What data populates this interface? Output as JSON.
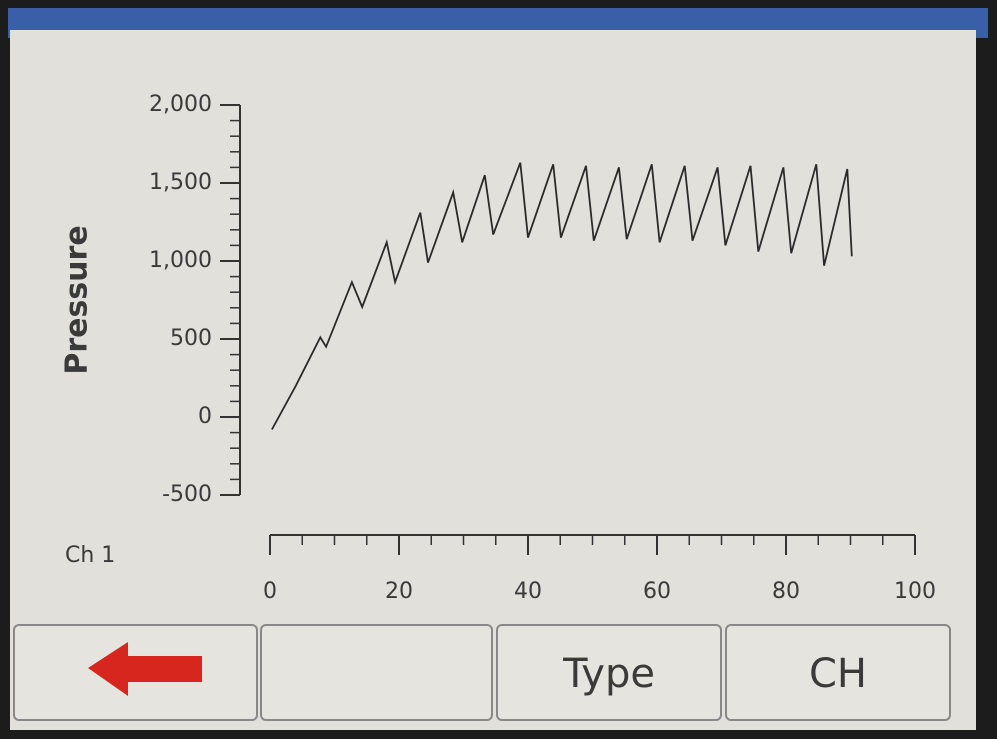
{
  "chart_data": {
    "type": "line",
    "ylabel": "Pressure",
    "channel_label": "Ch 1",
    "x": [
      0.3,
      4,
      7.8,
      8.7,
      12.7,
      14.3,
      18.1,
      19.4,
      23.3,
      24.5,
      28.4,
      29.8,
      33.3,
      34.6,
      38.8,
      40,
      43.9,
      45.1,
      49,
      50.2,
      54.1,
      55.3,
      59.2,
      60.4,
      64.3,
      65.5,
      69.4,
      70.6,
      74.5,
      75.7,
      79.6,
      80.8,
      84.7,
      85.9,
      89.5,
      90.2
    ],
    "values": [
      -80,
      200,
      510,
      450,
      865,
      705,
      1120,
      865,
      1310,
      990,
      1440,
      1120,
      1550,
      1170,
      1630,
      1150,
      1620,
      1150,
      1610,
      1130,
      1600,
      1140,
      1620,
      1120,
      1610,
      1130,
      1600,
      1100,
      1610,
      1060,
      1600,
      1050,
      1620,
      970,
      1590,
      1030
    ],
    "color": "#2a2a2a",
    "xlim": [
      0,
      100
    ],
    "xticks": [
      0,
      20,
      40,
      60,
      80,
      100
    ],
    "ylim": [
      -500,
      2000
    ],
    "yticks": [
      -500,
      0,
      500,
      {
        "value": 1000,
        "label": "1,000"
      },
      {
        "value": 1500,
        "label": "1,500"
      },
      {
        "value": 2000,
        "label": "2,000"
      }
    ]
  },
  "buttons": [
    "Type",
    "CH"
  ]
}
